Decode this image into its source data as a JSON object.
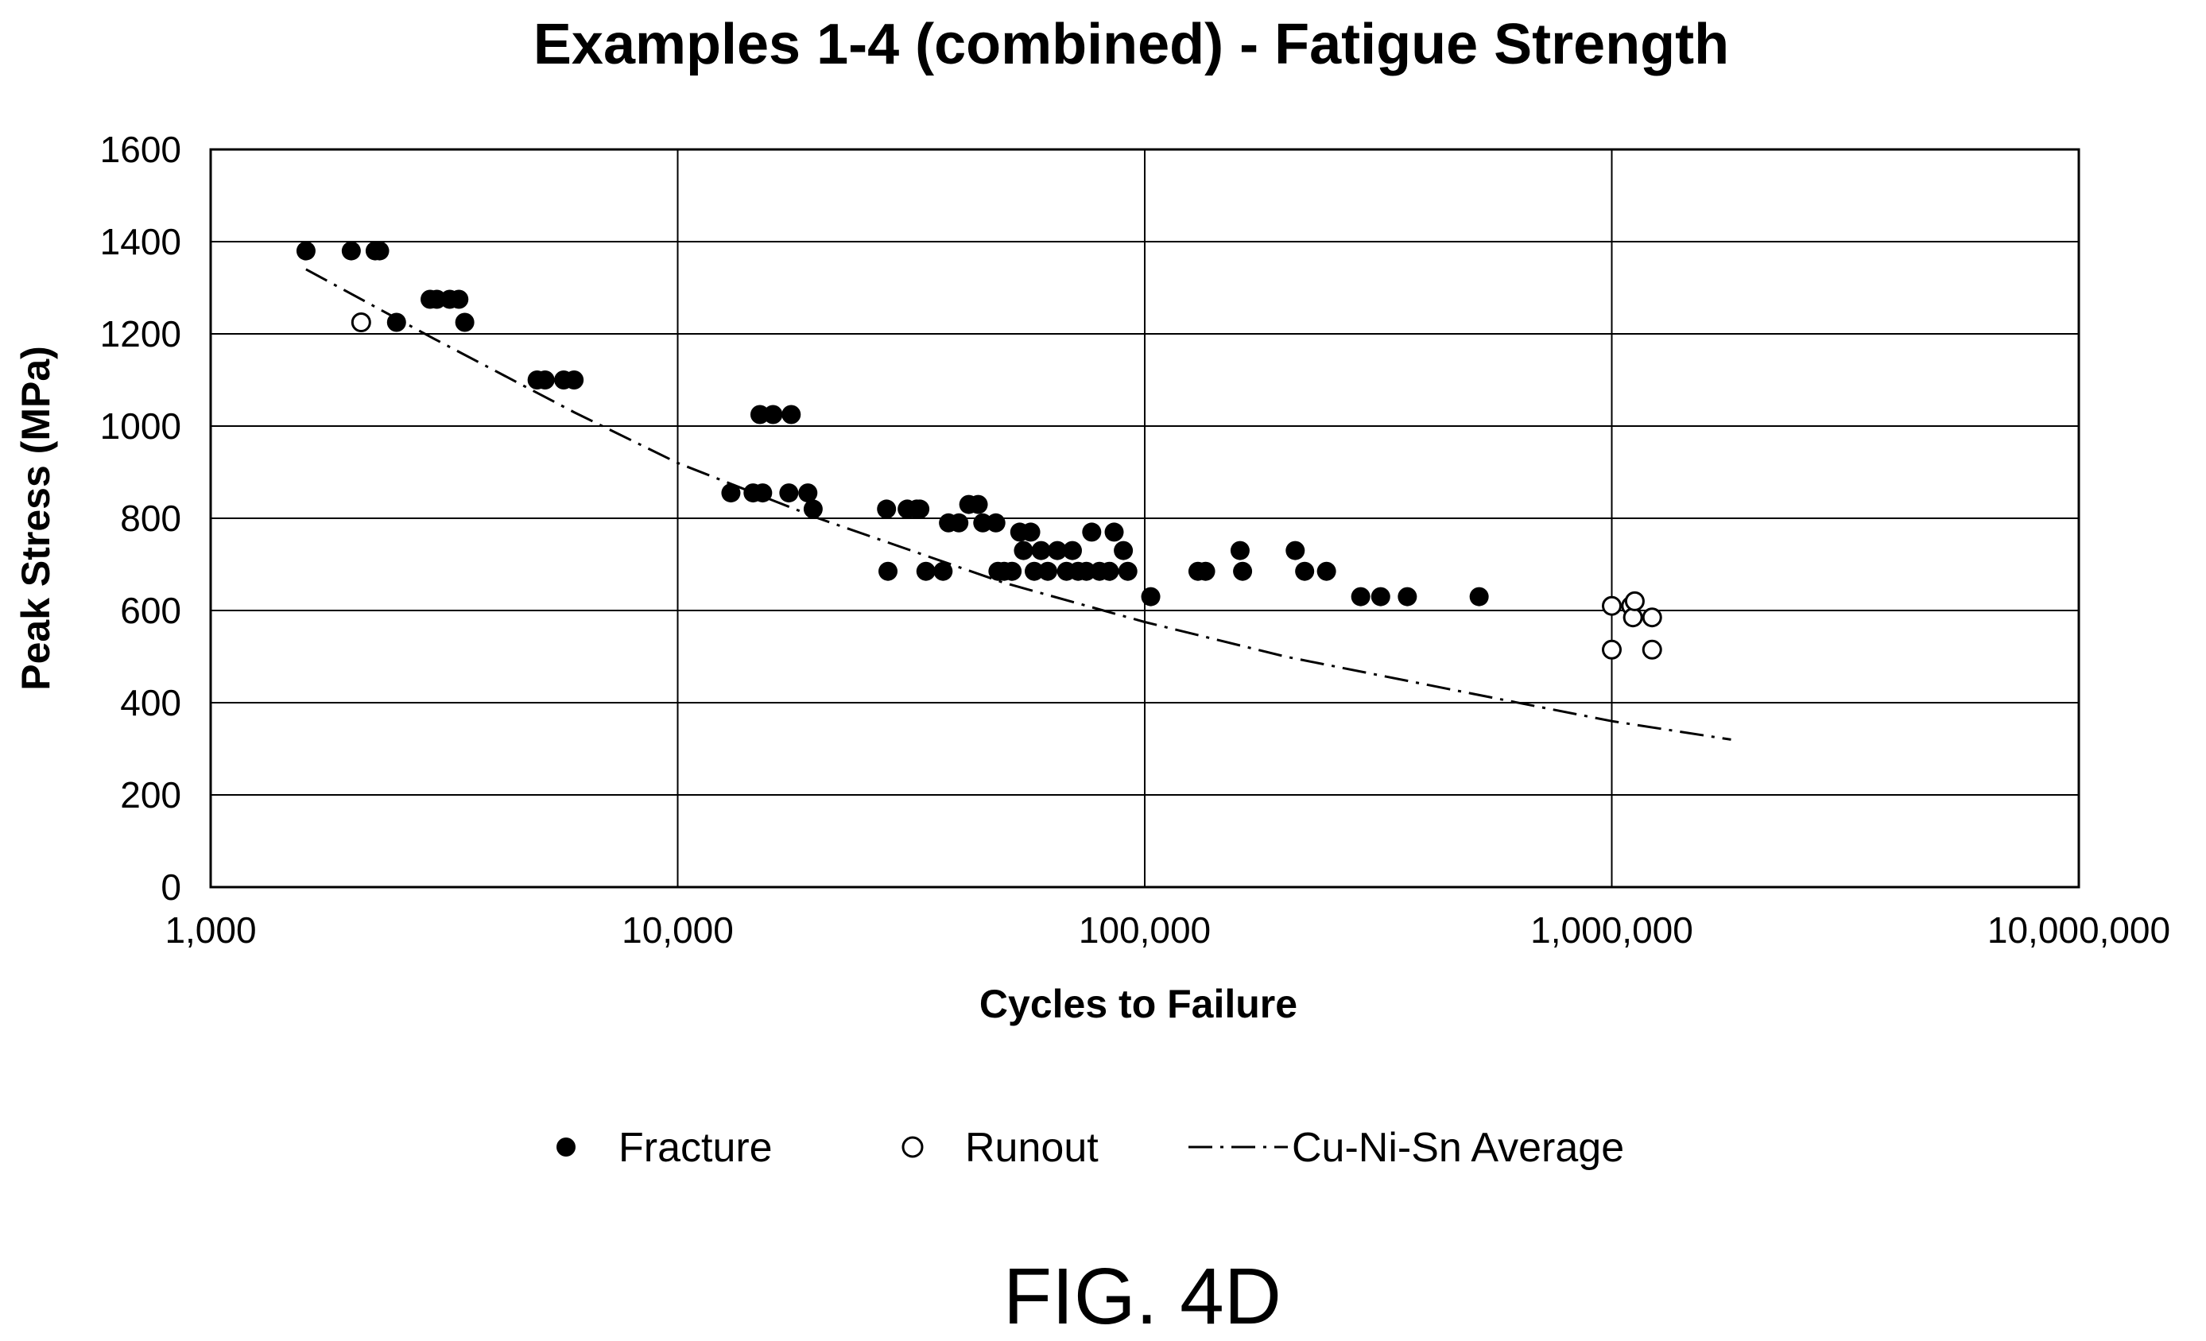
{
  "chart_data": {
    "type": "scatter",
    "title": "Examples 1-4 (combined) - Fatigue Strength",
    "xlabel": "Cycles to Failure",
    "ylabel": "Peak Stress (MPa)",
    "x_scale": "log",
    "xlim": [
      1000,
      10000000
    ],
    "ylim": [
      0,
      1600
    ],
    "x_ticks": [
      "1,000",
      "10,000",
      "100,000",
      "1,000,000",
      "10,000,000"
    ],
    "y_ticks": [
      "0",
      "200",
      "400",
      "600",
      "800",
      "1000",
      "1200",
      "1400",
      "1600"
    ],
    "grid": true,
    "legend_position": "bottom",
    "series": [
      {
        "name": "Fracture",
        "marker": "filled-circle",
        "color": "#000000",
        "points": [
          [
            1600,
            1380
          ],
          [
            2000,
            1380
          ],
          [
            2250,
            1380
          ],
          [
            2300,
            1380
          ],
          [
            2500,
            1225
          ],
          [
            2950,
            1275
          ],
          [
            3050,
            1275
          ],
          [
            3250,
            1275
          ],
          [
            3400,
            1275
          ],
          [
            3500,
            1225
          ],
          [
            5000,
            1100
          ],
          [
            5200,
            1100
          ],
          [
            5700,
            1100
          ],
          [
            6000,
            1100
          ],
          [
            13000,
            855
          ],
          [
            14500,
            855
          ],
          [
            15000,
            1025
          ],
          [
            15200,
            855
          ],
          [
            16000,
            1025
          ],
          [
            17500,
            1025
          ],
          [
            17300,
            855
          ],
          [
            19000,
            855
          ],
          [
            19500,
            820
          ],
          [
            28000,
            820
          ],
          [
            28200,
            685
          ],
          [
            31000,
            820
          ],
          [
            32500,
            820
          ],
          [
            33000,
            820
          ],
          [
            34000,
            685
          ],
          [
            37000,
            685
          ],
          [
            38000,
            790
          ],
          [
            40000,
            790
          ],
          [
            42000,
            830
          ],
          [
            44000,
            830
          ],
          [
            45000,
            790
          ],
          [
            48000,
            790
          ],
          [
            48500,
            685
          ],
          [
            50000,
            685
          ],
          [
            52000,
            685
          ],
          [
            54000,
            770
          ],
          [
            55000,
            730
          ],
          [
            57000,
            770
          ],
          [
            58000,
            685
          ],
          [
            60000,
            730
          ],
          [
            62000,
            685
          ],
          [
            65000,
            730
          ],
          [
            68000,
            685
          ],
          [
            70000,
            730
          ],
          [
            72000,
            685
          ],
          [
            75000,
            685
          ],
          [
            77000,
            770
          ],
          [
            80000,
            685
          ],
          [
            84000,
            685
          ],
          [
            86000,
            770
          ],
          [
            90000,
            730
          ],
          [
            92000,
            685
          ],
          [
            103000,
            630
          ],
          [
            130000,
            685
          ],
          [
            135000,
            685
          ],
          [
            160000,
            730
          ],
          [
            162000,
            685
          ],
          [
            210000,
            730
          ],
          [
            220000,
            685
          ],
          [
            245000,
            685
          ],
          [
            290000,
            630
          ],
          [
            320000,
            630
          ],
          [
            365000,
            630
          ],
          [
            520000,
            630
          ]
        ]
      },
      {
        "name": "Runout",
        "marker": "open-circle",
        "color": "#000000",
        "points": [
          [
            2100,
            1225
          ],
          [
            1000000,
            515
          ],
          [
            1000000,
            610
          ],
          [
            1100000,
            610
          ],
          [
            1110000,
            585
          ],
          [
            1120000,
            620
          ],
          [
            1220000,
            515
          ],
          [
            1220000,
            585
          ]
        ]
      },
      {
        "name": "Cu-Ni-Sn Average",
        "line_style": "dash-dot",
        "color": "#000000",
        "points": [
          [
            1600,
            1340
          ],
          [
            3000,
            1190
          ],
          [
            6000,
            1030
          ],
          [
            10000,
            920
          ],
          [
            20000,
            800
          ],
          [
            50000,
            660
          ],
          [
            100000,
            575
          ],
          [
            200000,
            500
          ],
          [
            500000,
            420
          ],
          [
            1000000,
            360
          ],
          [
            1800000,
            320
          ]
        ]
      }
    ]
  },
  "figure_label": "FIG. 4D"
}
